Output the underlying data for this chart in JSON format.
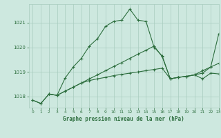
{
  "title": "Graphe pression niveau de la mer (hPa)",
  "bg_color": "#cde8df",
  "grid_color": "#a8ccbf",
  "line_color": "#2d6e3e",
  "xlim": [
    -0.5,
    23
  ],
  "ylim": [
    1017.55,
    1021.75
  ],
  "yticks": [
    1018,
    1019,
    1020,
    1021
  ],
  "xticks": [
    0,
    1,
    2,
    3,
    4,
    5,
    6,
    7,
    8,
    9,
    10,
    11,
    12,
    13,
    14,
    15,
    16,
    17,
    18,
    19,
    20,
    21,
    22,
    23
  ],
  "series_spike": {
    "x": [
      0,
      1,
      2,
      3,
      4,
      5,
      6,
      7,
      8,
      9,
      10,
      11,
      12,
      13,
      14,
      15,
      16,
      17,
      18,
      19,
      20,
      21,
      22,
      23
    ],
    "y": [
      1017.85,
      1017.72,
      1018.1,
      1018.05,
      1018.75,
      1019.2,
      1019.55,
      1020.05,
      1020.35,
      1020.85,
      1021.05,
      1021.1,
      1021.55,
      1021.1,
      1021.05,
      1020.0,
      1019.65,
      1018.72,
      1018.78,
      1018.82,
      1018.88,
      1018.72,
      1018.95,
      1018.92
    ]
  },
  "series_diag": {
    "x": [
      0,
      1,
      2,
      3,
      4,
      5,
      6,
      7,
      8,
      9,
      10,
      11,
      12,
      13,
      14,
      15,
      16,
      17,
      18,
      19,
      20,
      21,
      22,
      23
    ],
    "y": [
      1017.85,
      1017.72,
      1018.1,
      1018.05,
      1018.22,
      1018.38,
      1018.55,
      1018.72,
      1018.88,
      1019.05,
      1019.22,
      1019.38,
      1019.55,
      1019.72,
      1019.88,
      1020.05,
      1019.62,
      1018.72,
      1018.78,
      1018.82,
      1018.88,
      1019.05,
      1019.2,
      1020.55
    ]
  },
  "series_flat": {
    "x": [
      2,
      3,
      4,
      5,
      6,
      7,
      8,
      9,
      10,
      11,
      12,
      13,
      14,
      15,
      16,
      17,
      18,
      19,
      20,
      21,
      22,
      23
    ],
    "y": [
      1018.1,
      1018.05,
      1018.22,
      1018.38,
      1018.55,
      1018.65,
      1018.72,
      1018.78,
      1018.85,
      1018.9,
      1018.95,
      1019.0,
      1019.05,
      1019.1,
      1019.15,
      1018.72,
      1018.78,
      1018.82,
      1018.88,
      1018.95,
      1019.2,
      1019.35
    ]
  }
}
